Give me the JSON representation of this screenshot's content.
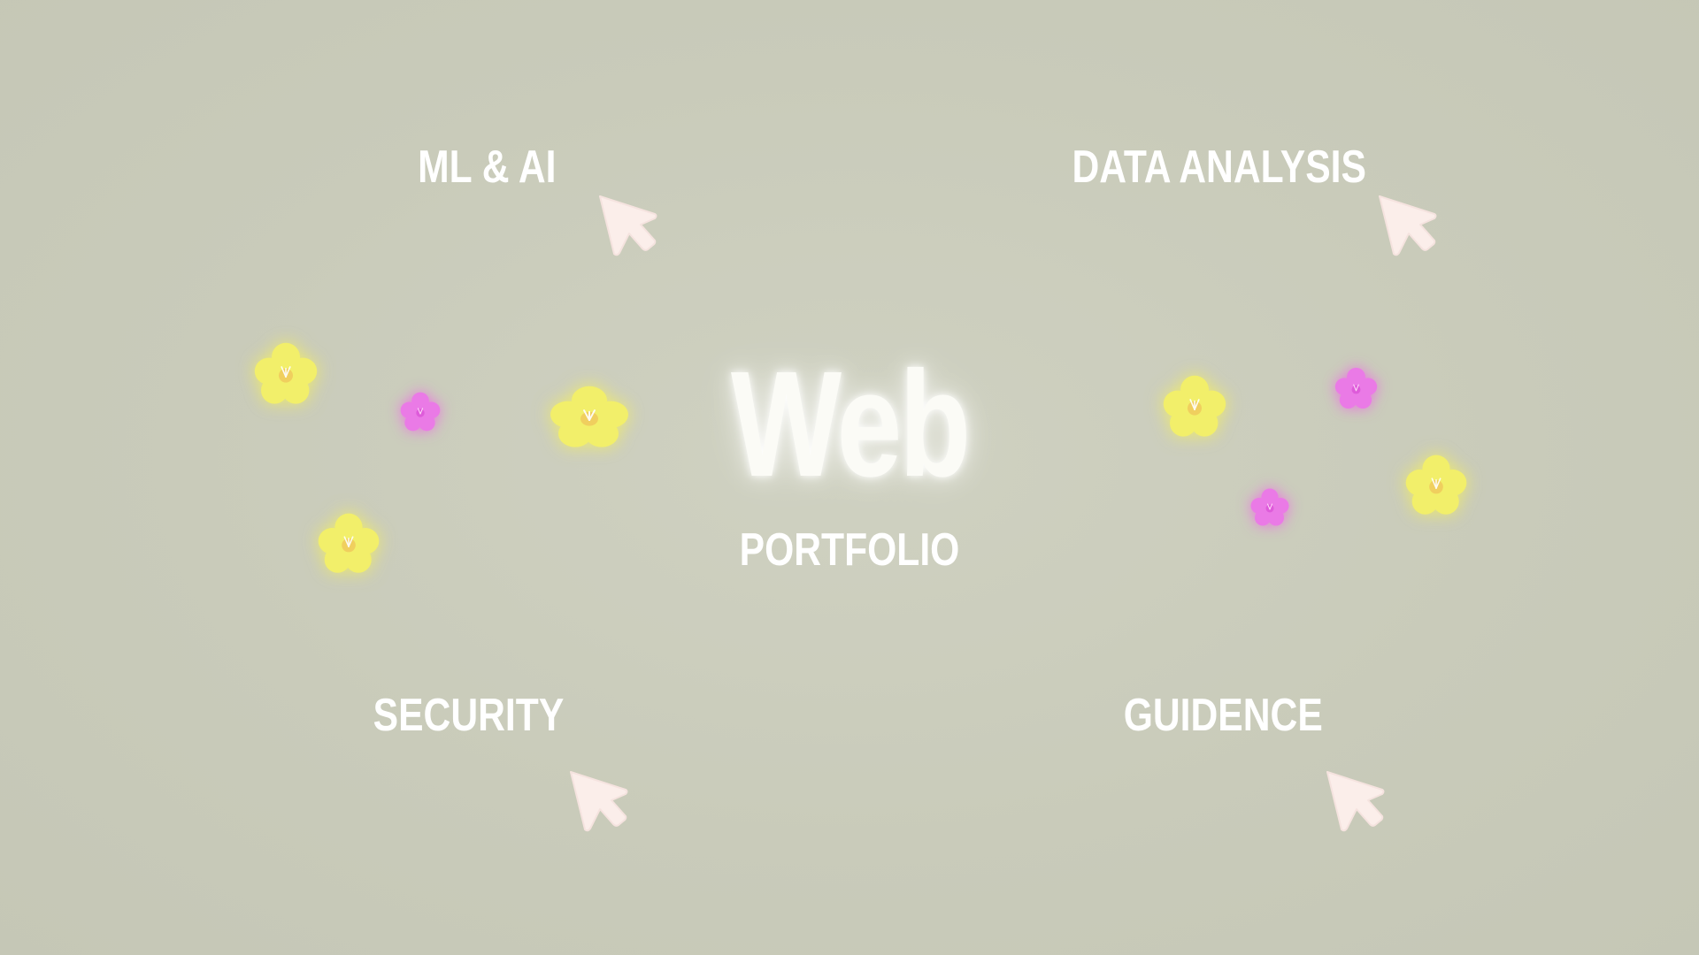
{
  "nav": {
    "ml_ai": "ML & AI",
    "data_analysis": "DATA ANALYSIS",
    "security": "SECURITY",
    "guidence": "GUIDENCE"
  },
  "hero": {
    "title": "Web",
    "subtitle": "PORTFOLIO"
  },
  "icons": {
    "cursor": "cursor-arrow-icon",
    "flower": "flower-icon"
  },
  "colors": {
    "background": "#c9cbba",
    "text": "#ffffff",
    "cursor_fill": "#fbeeea",
    "flower_yellow": "#f2ef6a",
    "flower_pink": "#ea7ae6"
  }
}
